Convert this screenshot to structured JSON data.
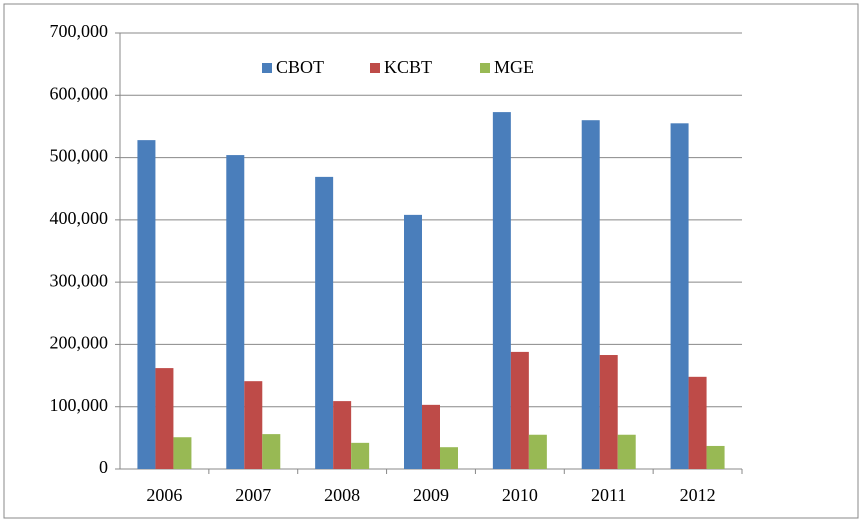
{
  "chart_data": {
    "type": "bar",
    "categories": [
      "2006",
      "2007",
      "2008",
      "2009",
      "2010",
      "2011",
      "2012"
    ],
    "series": [
      {
        "name": "CBOT",
        "color": "#4a7ebb",
        "values": [
          528000,
          504000,
          469000,
          408000,
          573000,
          560000,
          555000
        ]
      },
      {
        "name": "KCBT",
        "color": "#be4b48",
        "values": [
          162000,
          141000,
          109000,
          103000,
          188000,
          183000,
          148000
        ]
      },
      {
        "name": "MGE",
        "color": "#98b954",
        "values": [
          51000,
          56000,
          42000,
          35000,
          55000,
          55000,
          37000
        ]
      }
    ],
    "ylim": [
      0,
      700000
    ],
    "yticks": [
      {
        "value": 0,
        "label": "0"
      },
      {
        "value": 100000,
        "label": "100,000"
      },
      {
        "value": 200000,
        "label": "200,000"
      },
      {
        "value": 300000,
        "label": "300,000"
      },
      {
        "value": 400000,
        "label": "400,000"
      },
      {
        "value": 500000,
        "label": "500,000"
      },
      {
        "value": 600000,
        "label": "600,000"
      },
      {
        "value": 700000,
        "label": "700,000"
      }
    ],
    "grid": true,
    "legend": "top"
  }
}
